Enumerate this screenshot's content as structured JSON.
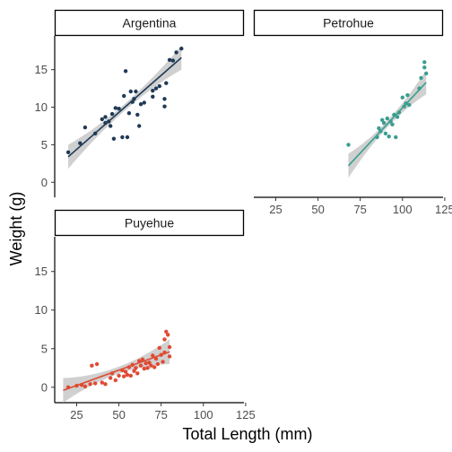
{
  "chart_data": {
    "type": "scatter",
    "facets": [
      {
        "name": "Argentina",
        "color": "#1f3a56",
        "points": [
          [
            20,
            4
          ],
          [
            27,
            5.2
          ],
          [
            30,
            7.3
          ],
          [
            36,
            6.5
          ],
          [
            40,
            8.4
          ],
          [
            42,
            7.9
          ],
          [
            42,
            8.7
          ],
          [
            44,
            8.1
          ],
          [
            45,
            7.5
          ],
          [
            46,
            9.1
          ],
          [
            47,
            5.8
          ],
          [
            48,
            9.9
          ],
          [
            50,
            9.8
          ],
          [
            52,
            6
          ],
          [
            53,
            11.5
          ],
          [
            54,
            14.8
          ],
          [
            55,
            6
          ],
          [
            56,
            9.2
          ],
          [
            57,
            12.1
          ],
          [
            58,
            10.7
          ],
          [
            59,
            11.1
          ],
          [
            60,
            12.1
          ],
          [
            61,
            9
          ],
          [
            62,
            7.5
          ],
          [
            63,
            10.4
          ],
          [
            65,
            10.6
          ],
          [
            70,
            11.4
          ],
          [
            70,
            12.2
          ],
          [
            72,
            12.5
          ],
          [
            74,
            12.8
          ],
          [
            77,
            10.1
          ],
          [
            77,
            11.1
          ],
          [
            78,
            13.2
          ],
          [
            80,
            16.3
          ],
          [
            82,
            16.2
          ],
          [
            84,
            17.3
          ],
          [
            87,
            17.8
          ]
        ],
        "fit": {
          "x": [
            20,
            87
          ],
          "y": [
            3.4,
            16.6
          ]
        }
      },
      {
        "name": "Petrohue",
        "color": "#3a9e8f",
        "points": [
          [
            68,
            5
          ],
          [
            85,
            6
          ],
          [
            86,
            7.2
          ],
          [
            87,
            6.8
          ],
          [
            88,
            8.3
          ],
          [
            89,
            7.9
          ],
          [
            90,
            6.5
          ],
          [
            91,
            8.5
          ],
          [
            92,
            6.1
          ],
          [
            93,
            8.1
          ],
          [
            94,
            7.7
          ],
          [
            95,
            9
          ],
          [
            96,
            6
          ],
          [
            97,
            8.7
          ],
          [
            98,
            9.3
          ],
          [
            100,
            11.3
          ],
          [
            101,
            10.1
          ],
          [
            102,
            10.5
          ],
          [
            103,
            11.6
          ],
          [
            104,
            10.3
          ],
          [
            110,
            12.5
          ],
          [
            111,
            13.9
          ],
          [
            113,
            15.3
          ],
          [
            113,
            16
          ],
          [
            114,
            14.5
          ]
        ],
        "fit": {
          "x": [
            68,
            114
          ],
          "y": [
            2.2,
            13.3
          ]
        }
      },
      {
        "name": "Puyehue",
        "color": "#e04a33",
        "points": [
          [
            20,
            0
          ],
          [
            25,
            0.2
          ],
          [
            28,
            0.3
          ],
          [
            30,
            0.1
          ],
          [
            33,
            0.4
          ],
          [
            34,
            2.8
          ],
          [
            36,
            0.5
          ],
          [
            37,
            3
          ],
          [
            40,
            0.6
          ],
          [
            42,
            0.4
          ],
          [
            45,
            1.2
          ],
          [
            46,
            1.8
          ],
          [
            48,
            0.9
          ],
          [
            50,
            1.5
          ],
          [
            52,
            2.2
          ],
          [
            53,
            1.4
          ],
          [
            54,
            2
          ],
          [
            55,
            1.6
          ],
          [
            56,
            2.6
          ],
          [
            57,
            1.5
          ],
          [
            58,
            2.9
          ],
          [
            59,
            2.1
          ],
          [
            60,
            2.5
          ],
          [
            61,
            1.8
          ],
          [
            62,
            3.4
          ],
          [
            63,
            2.8
          ],
          [
            64,
            3.6
          ],
          [
            65,
            2.4
          ],
          [
            66,
            3.1
          ],
          [
            67,
            2.5
          ],
          [
            68,
            3.2
          ],
          [
            69,
            2.8
          ],
          [
            70,
            4.1
          ],
          [
            71,
            2.6
          ],
          [
            72,
            3.7
          ],
          [
            73,
            3
          ],
          [
            74,
            5.1
          ],
          [
            75,
            4.2
          ],
          [
            76,
            3.3
          ],
          [
            77,
            6.2
          ],
          [
            77,
            4.5
          ],
          [
            78,
            7.2
          ],
          [
            79,
            6.8
          ],
          [
            80,
            5.2
          ],
          [
            80,
            4
          ]
        ],
        "fit": {
          "x": [
            17,
            80
          ],
          "y": [
            -0.4,
            4.6
          ]
        }
      }
    ],
    "xlabel": "Total Length (mm)",
    "ylabel": "Weight (g)",
    "xlim": [
      12,
      124
    ],
    "ylim": [
      -2,
      19.5
    ],
    "xticks": [
      25,
      50,
      75,
      100,
      125
    ],
    "yticks": [
      0,
      5,
      10,
      15
    ],
    "grid": false,
    "ribbon_color": "#c8c8c8"
  }
}
